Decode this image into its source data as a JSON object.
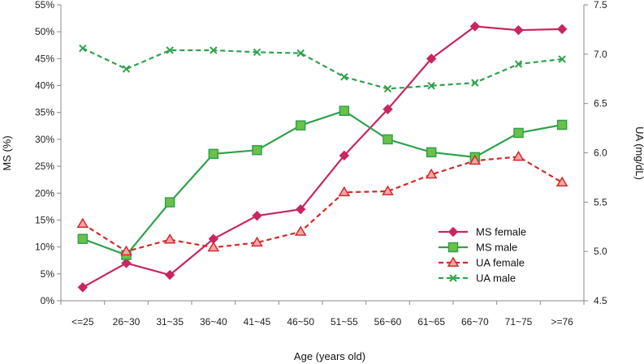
{
  "chart_data": {
    "type": "line",
    "categories": [
      "<=25",
      "26~30",
      "31~35",
      "36~40",
      "41~45",
      "46~50",
      "51~55",
      "56~60",
      "61~65",
      "66~70",
      "71~75",
      ">=76"
    ],
    "xlabel": "Age (years old)",
    "ylabel_left": "MS  (%)",
    "ylabel_right": "UA  (mg/dL)",
    "ylim_left": [
      0,
      55
    ],
    "ylim_right": [
      4.5,
      7.5
    ],
    "yticks_left": [
      "0%",
      "5%",
      "10%",
      "15%",
      "20%",
      "25%",
      "30%",
      "35%",
      "40%",
      "45%",
      "50%",
      "55%"
    ],
    "yticks_right": [
      "4.5",
      "5.0",
      "5.5",
      "6.0",
      "6.5",
      "7.0",
      "7.5"
    ],
    "grid": false,
    "legend_position": "bottom-right",
    "series": [
      {
        "name": "MS female",
        "axis": "left",
        "color": "#c8265e",
        "marker": "diamond",
        "dash": "solid",
        "values": [
          2.5,
          7.0,
          4.8,
          11.5,
          15.8,
          17.0,
          27.0,
          35.6,
          45.0,
          51.0,
          50.3,
          50.5
        ]
      },
      {
        "name": "MS male",
        "axis": "left",
        "color": "#2ea24a",
        "marker": "square",
        "dash": "solid",
        "values": [
          11.5,
          8.5,
          18.3,
          27.3,
          28.0,
          32.6,
          35.3,
          30.0,
          27.6,
          26.7,
          31.2,
          32.7
        ]
      },
      {
        "name": "UA female",
        "axis": "right",
        "color": "#d32a2a",
        "marker": "triangle",
        "dash": "dashed",
        "values": [
          5.28,
          5.0,
          5.12,
          5.04,
          5.09,
          5.2,
          5.6,
          5.61,
          5.78,
          5.92,
          5.96,
          5.7
        ]
      },
      {
        "name": "UA male",
        "axis": "right",
        "color": "#2ea24a",
        "marker": "x",
        "dash": "dashed",
        "values": [
          7.06,
          6.85,
          7.04,
          7.04,
          7.02,
          7.01,
          6.77,
          6.65,
          6.68,
          6.71,
          6.9,
          6.95
        ]
      }
    ]
  }
}
